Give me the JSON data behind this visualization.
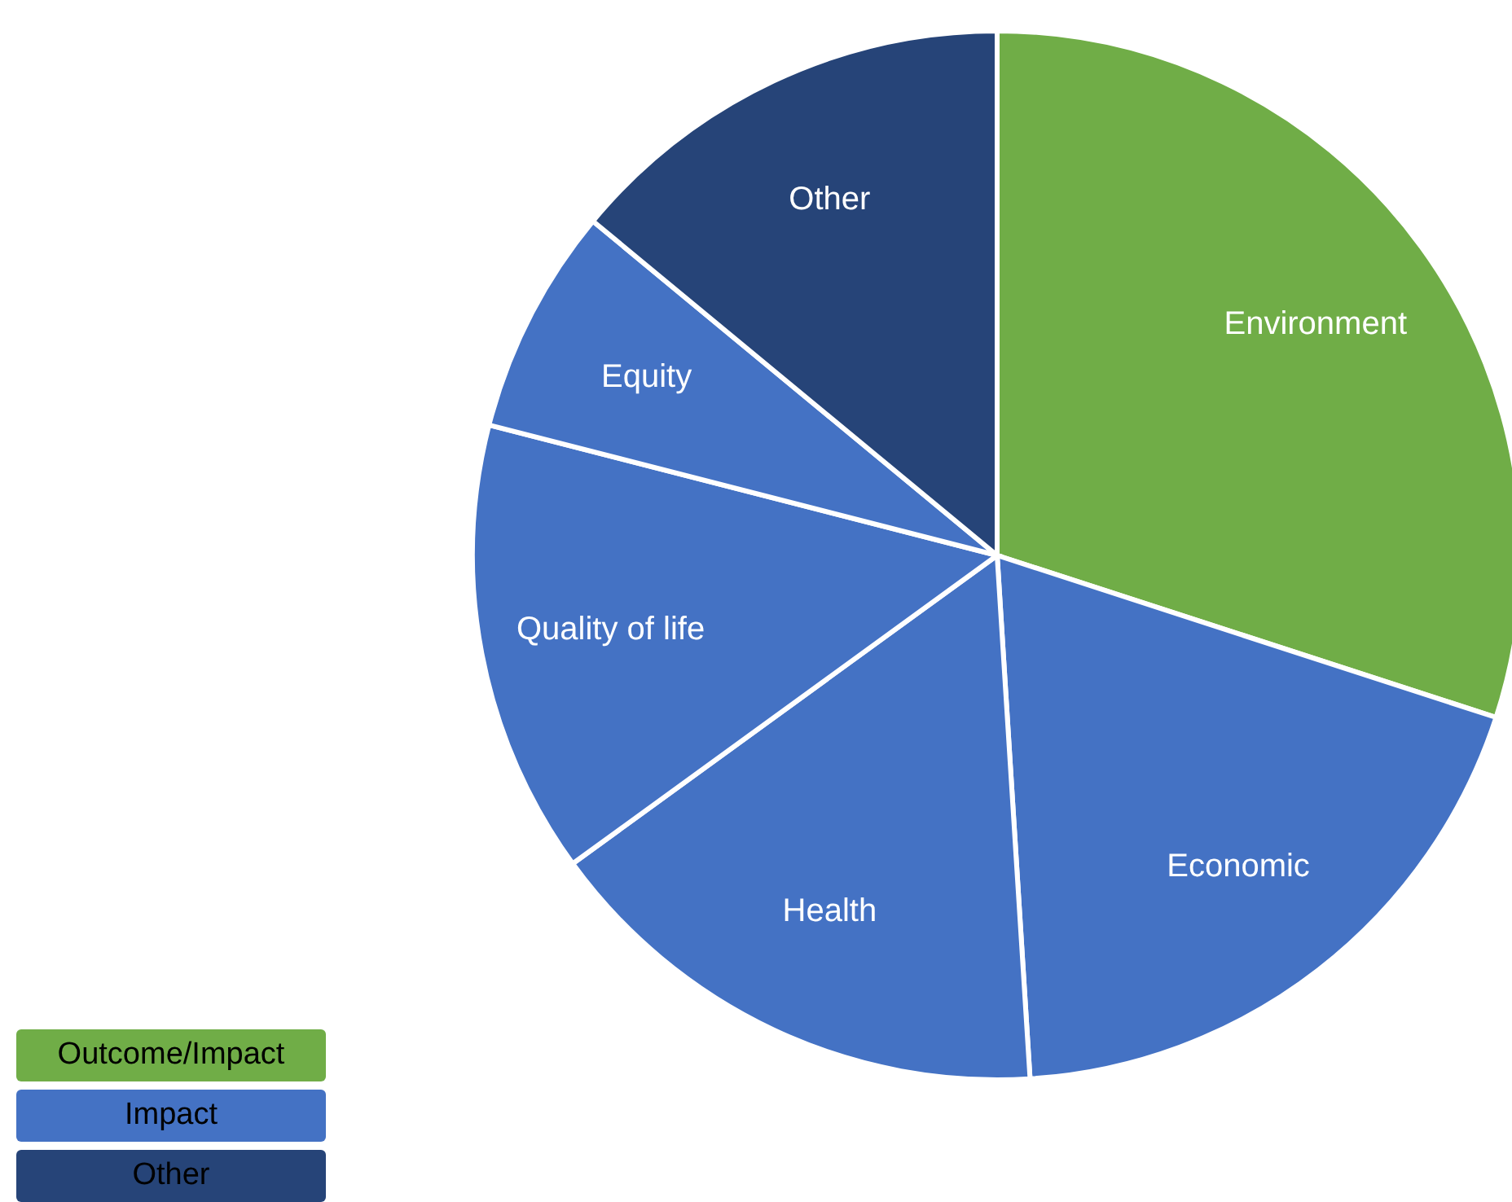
{
  "chart_data": {
    "type": "pie",
    "categories": [
      "Environment",
      "Economic",
      "Health",
      "Quality of life",
      "Equity",
      "Other"
    ],
    "values": [
      30,
      19,
      16,
      14,
      7,
      14
    ],
    "colors": [
      "#70ad47",
      "#4472c4",
      "#4472c4",
      "#4472c4",
      "#4472c4",
      "#264478"
    ],
    "annotations": [
      "Outcome/Impact",
      "Impact",
      "Other"
    ]
  }
}
